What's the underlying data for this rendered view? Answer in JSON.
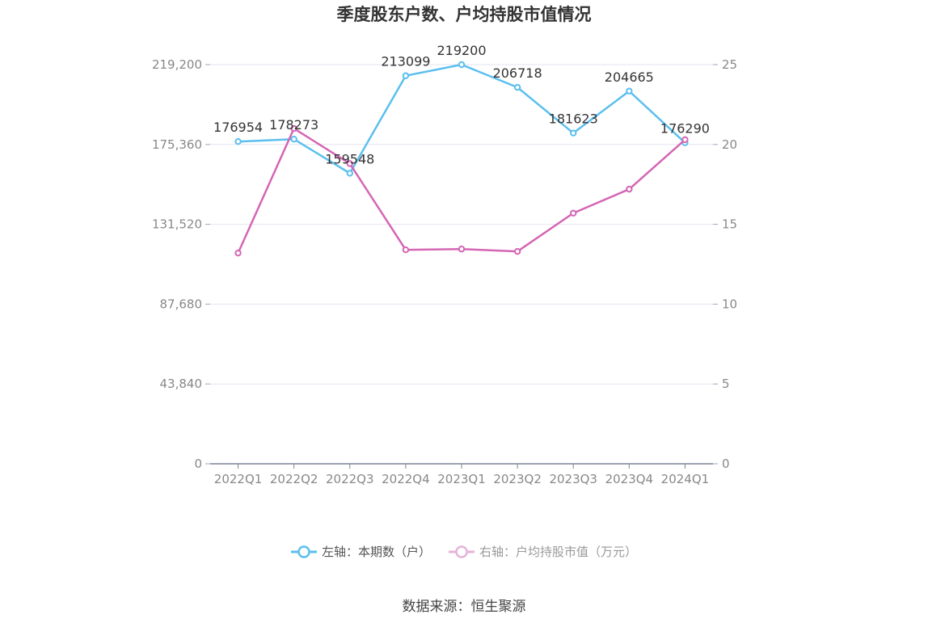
{
  "chart_data": {
    "type": "line",
    "title": "季度股东户数、户均持股市值情况",
    "categories": [
      "2022Q1",
      "2022Q2",
      "2022Q3",
      "2022Q4",
      "2023Q1",
      "2023Q2",
      "2023Q3",
      "2023Q4",
      "2024Q1"
    ],
    "y_left": {
      "min": 0,
      "max": 219200,
      "ticks": [
        "0",
        "43,840",
        "87,680",
        "131,520",
        "175,360",
        "219,200"
      ]
    },
    "y_right": {
      "min": 0,
      "max": 25,
      "ticks": [
        "0",
        "5",
        "10",
        "15",
        "20",
        "25"
      ]
    },
    "grid": true,
    "legend_position": "bottom",
    "series": [
      {
        "name": "左轴：本期数（户）",
        "axis": "left",
        "color": "#5bbfef",
        "values": [
          176954,
          178273,
          159548,
          213099,
          219200,
          206718,
          181623,
          204665,
          176290
        ],
        "labels": [
          "176954",
          "178273",
          "159548",
          "213099",
          "219200",
          "206718",
          "181623",
          "204665",
          "176290"
        ]
      },
      {
        "name": "右轴：户均持股市值（万元）",
        "axis": "right",
        "color": "#d466b4",
        "values": [
          13.2,
          21.0,
          18.8,
          13.4,
          13.45,
          13.3,
          15.7,
          17.2,
          20.3
        ]
      }
    ]
  },
  "source": "数据来源：恒生聚源"
}
